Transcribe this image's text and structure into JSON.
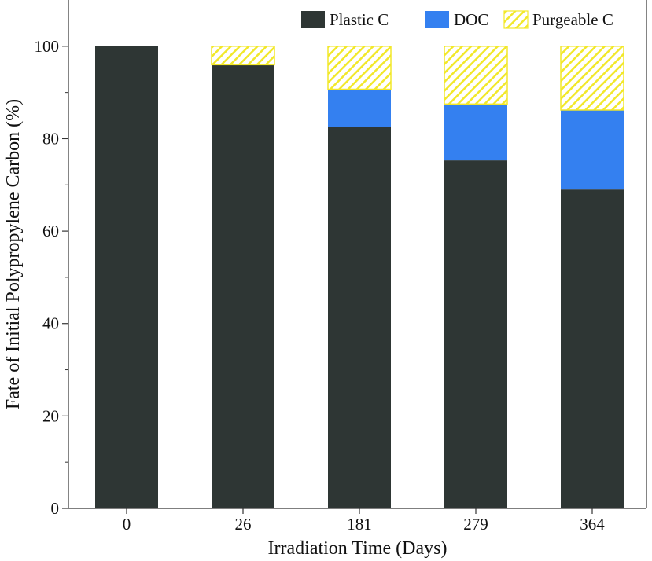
{
  "chart_data": {
    "type": "bar",
    "stacked": true,
    "categories": [
      "0",
      "26",
      "181",
      "279",
      "364"
    ],
    "series": [
      {
        "name": "Plastic C",
        "color": "#2e3634",
        "pattern": "solid",
        "values": [
          100,
          96,
          82.5,
          75.3,
          69
        ]
      },
      {
        "name": "DOC",
        "color": "#3480f0",
        "pattern": "solid",
        "values": [
          0,
          0,
          8.2,
          12.2,
          17.2
        ]
      },
      {
        "name": "Purgeable C",
        "color": "#f2e82a",
        "pattern": "hatched",
        "values": [
          0,
          4,
          9.3,
          12.5,
          13.8
        ]
      }
    ],
    "xlabel": "Irradiation Time (Days)",
    "ylabel": "Fate of Initial Polypropylene Carbon (%)",
    "ylim": [
      0,
      110
    ],
    "yticks": [
      0,
      20,
      40,
      60,
      80,
      100
    ],
    "legend_position": "top-right",
    "grid": false
  }
}
